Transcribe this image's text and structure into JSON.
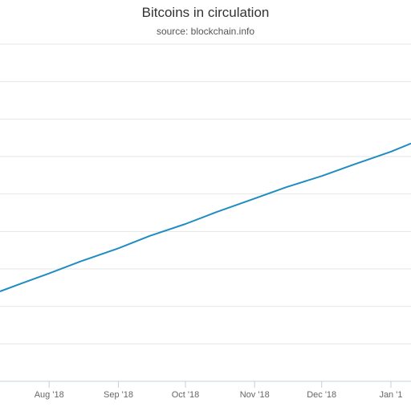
{
  "chart_data": {
    "type": "line",
    "title": "Bitcoins in circulation",
    "subtitle": "source: blockchain.info",
    "xlabel": "",
    "ylabel": "",
    "x_ticks": [
      "Aug '18",
      "Sep '18",
      "Oct '18",
      "Nov '18",
      "Dec '18",
      "Jan '1"
    ],
    "y_range": [
      0,
      9
    ],
    "grid": true,
    "legend": "none",
    "line_color": "#1f8dc0",
    "series": [
      {
        "x": [
          "2018-07-10",
          "2018-07-20",
          "2018-08-01",
          "2018-08-15",
          "2018-09-01",
          "2018-09-15",
          "2018-10-01",
          "2018-10-15",
          "2018-11-01",
          "2018-11-15",
          "2018-12-01",
          "2018-12-15",
          "2019-01-01",
          "2019-01-10"
        ],
        "values": [
          2.4,
          2.62,
          2.88,
          3.2,
          3.55,
          3.88,
          4.2,
          4.52,
          4.88,
          5.18,
          5.48,
          5.78,
          6.13,
          6.35
        ]
      }
    ]
  }
}
